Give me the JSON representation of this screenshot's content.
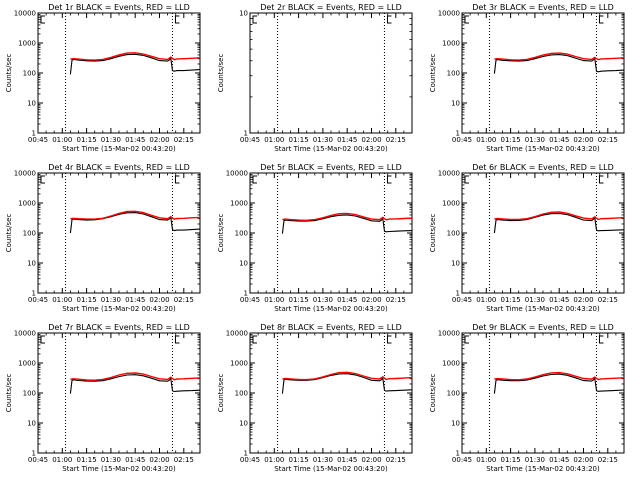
{
  "figure": {
    "background": "#ffffff",
    "axis_color": "#000000"
  },
  "shared_x_ticks": [
    "00:45",
    "01:00",
    "01:15",
    "01:30",
    "01:45",
    "02:00",
    "02:15"
  ],
  "shared_y_ticks": [
    "1",
    "10",
    "100",
    "1000",
    "10000"
  ],
  "chart_data": [
    {
      "type": "line",
      "title": "Det 1r BLACK = Events, RED = LLD",
      "xlabel": "Start Time (15-Mar-02 00:43:20)",
      "ylabel": "Counts/sec",
      "xlim_min": [
        0,
        100
      ],
      "ylim": [
        1,
        10000
      ],
      "yscale": "log",
      "x_ticks_min": [
        0,
        15,
        30,
        45,
        60,
        75,
        90
      ],
      "vlines_dotted_min": [
        17,
        83
      ],
      "series": [
        {
          "name": "Events",
          "color": "#000000",
          "x": [
            20,
            21,
            22,
            25,
            30,
            35,
            40,
            45,
            50,
            55,
            60,
            65,
            70,
            75,
            80,
            81,
            82,
            83,
            84,
            86,
            90,
            95,
            100
          ],
          "y": [
            90,
            270,
            285,
            270,
            255,
            250,
            260,
            300,
            360,
            410,
            420,
            385,
            320,
            260,
            250,
            270,
            310,
            120,
            115,
            120,
            120,
            125,
            130
          ]
        },
        {
          "name": "LLD",
          "color": "#ff0000",
          "x": [
            20,
            22,
            25,
            30,
            35,
            40,
            45,
            50,
            55,
            60,
            65,
            70,
            75,
            80,
            82,
            84,
            86,
            90,
            95,
            100
          ],
          "y": [
            290,
            300,
            290,
            275,
            270,
            285,
            330,
            400,
            460,
            470,
            430,
            360,
            300,
            285,
            340,
            280,
            295,
            300,
            310,
            320
          ]
        }
      ]
    },
    {
      "type": "line",
      "title": "Det 2r BLACK = Events, RED = LLD",
      "xlabel": "Start Time (15-Mar-02 00:43:20)",
      "ylabel": "Counts/sec",
      "xlim_min": [
        0,
        100
      ],
      "ylim": [
        1,
        10
      ],
      "yscale": "log",
      "y_ticks": [
        1,
        10
      ],
      "x_ticks_min": [
        0,
        15,
        30,
        45,
        60,
        75,
        90
      ],
      "vlines_dotted_min": [
        17,
        83
      ],
      "series": []
    },
    {
      "type": "line",
      "title": "Det 3r BLACK = Events, RED = LLD",
      "xlabel": "Start Time (15-Mar-02 00:43:20)",
      "ylabel": "Counts/sec",
      "xlim_min": [
        0,
        100
      ],
      "ylim": [
        1,
        10000
      ],
      "yscale": "log",
      "x_ticks_min": [
        0,
        15,
        30,
        45,
        60,
        75,
        90
      ],
      "vlines_dotted_min": [
        17,
        83
      ],
      "series": [
        {
          "name": "Events",
          "color": "#000000",
          "x": [
            20,
            21,
            22,
            25,
            30,
            35,
            40,
            45,
            50,
            55,
            60,
            65,
            70,
            75,
            80,
            81,
            82,
            83,
            84,
            86,
            90,
            95,
            100
          ],
          "y": [
            95,
            270,
            280,
            265,
            255,
            250,
            260,
            300,
            355,
            400,
            410,
            380,
            315,
            260,
            250,
            270,
            300,
            115,
            110,
            115,
            118,
            120,
            125
          ]
        },
        {
          "name": "LLD",
          "color": "#ff0000",
          "x": [
            20,
            22,
            25,
            30,
            35,
            40,
            45,
            50,
            55,
            60,
            65,
            70,
            75,
            80,
            82,
            84,
            86,
            90,
            95,
            100
          ],
          "y": [
            290,
            300,
            290,
            275,
            270,
            285,
            330,
            395,
            450,
            460,
            425,
            355,
            300,
            285,
            330,
            280,
            295,
            300,
            310,
            320
          ]
        }
      ]
    },
    {
      "type": "line",
      "title": "Det 4r BLACK = Events, RED = LLD",
      "xlabel": "Start Time (15-Mar-02 00:43:20)",
      "ylabel": "Counts/sec",
      "xlim_min": [
        0,
        100
      ],
      "ylim": [
        1,
        10000
      ],
      "yscale": "log",
      "x_ticks_min": [
        0,
        15,
        30,
        45,
        60,
        75,
        90
      ],
      "vlines_dotted_min": [
        17,
        83
      ],
      "series": [
        {
          "name": "Events",
          "color": "#000000",
          "x": [
            20,
            21,
            22,
            25,
            30,
            35,
            40,
            45,
            50,
            55,
            60,
            65,
            70,
            75,
            80,
            81,
            82,
            83,
            84,
            86,
            90,
            95,
            100
          ],
          "y": [
            100,
            280,
            290,
            280,
            270,
            275,
            300,
            350,
            420,
            470,
            480,
            430,
            350,
            280,
            270,
            290,
            330,
            130,
            120,
            125,
            125,
            130,
            135
          ]
        },
        {
          "name": "LLD",
          "color": "#ff0000",
          "x": [
            20,
            22,
            25,
            30,
            35,
            40,
            45,
            50,
            55,
            60,
            65,
            70,
            75,
            80,
            82,
            84,
            86,
            90,
            95,
            100
          ],
          "y": [
            300,
            310,
            300,
            290,
            290,
            310,
            370,
            450,
            520,
            530,
            480,
            390,
            320,
            300,
            350,
            290,
            305,
            310,
            320,
            330
          ]
        }
      ]
    },
    {
      "type": "line",
      "title": "Det 5r BLACK = Events, RED = LLD",
      "xlabel": "Start Time (15-Mar-02 00:43:20)",
      "ylabel": "Counts/sec",
      "xlim_min": [
        0,
        100
      ],
      "ylim": [
        1,
        10000
      ],
      "yscale": "log",
      "x_ticks_min": [
        0,
        15,
        30,
        45,
        60,
        75,
        90
      ],
      "vlines_dotted_min": [
        17,
        83
      ],
      "series": [
        {
          "name": "Events",
          "color": "#000000",
          "x": [
            20,
            21,
            22,
            25,
            30,
            35,
            40,
            45,
            50,
            55,
            60,
            65,
            70,
            75,
            80,
            81,
            82,
            83,
            84,
            86,
            90,
            95,
            100
          ],
          "y": [
            95,
            260,
            270,
            260,
            250,
            250,
            260,
            300,
            350,
            390,
            400,
            370,
            310,
            255,
            245,
            265,
            300,
            115,
            110,
            112,
            115,
            118,
            120
          ]
        },
        {
          "name": "LLD",
          "color": "#ff0000",
          "x": [
            20,
            22,
            25,
            30,
            35,
            40,
            45,
            50,
            55,
            60,
            65,
            70,
            75,
            80,
            82,
            84,
            86,
            90,
            95,
            100
          ],
          "y": [
            280,
            290,
            280,
            270,
            265,
            280,
            320,
            385,
            440,
            450,
            415,
            345,
            290,
            280,
            330,
            275,
            290,
            295,
            305,
            315
          ]
        }
      ]
    },
    {
      "type": "line",
      "title": "Det 6r BLACK = Events, RED = LLD",
      "xlabel": "Start Time (15-Mar-02 00:43:20)",
      "ylabel": "Counts/sec",
      "xlim_min": [
        0,
        100
      ],
      "ylim": [
        1,
        10000
      ],
      "yscale": "log",
      "x_ticks_min": [
        0,
        15,
        30,
        45,
        60,
        75,
        90
      ],
      "vlines_dotted_min": [
        17,
        83
      ],
      "series": [
        {
          "name": "Events",
          "color": "#000000",
          "x": [
            20,
            21,
            22,
            25,
            30,
            35,
            40,
            45,
            50,
            55,
            60,
            65,
            70,
            75,
            80,
            81,
            82,
            83,
            84,
            86,
            90,
            95,
            100
          ],
          "y": [
            100,
            270,
            280,
            270,
            260,
            262,
            280,
            330,
            395,
            440,
            450,
            410,
            335,
            270,
            260,
            280,
            320,
            125,
            118,
            120,
            122,
            125,
            128
          ]
        },
        {
          "name": "LLD",
          "color": "#ff0000",
          "x": [
            20,
            22,
            25,
            30,
            35,
            40,
            45,
            50,
            55,
            60,
            65,
            70,
            75,
            80,
            82,
            84,
            86,
            90,
            95,
            100
          ],
          "y": [
            295,
            305,
            295,
            285,
            285,
            300,
            350,
            425,
            490,
            500,
            455,
            375,
            315,
            295,
            345,
            285,
            300,
            305,
            315,
            325
          ]
        }
      ]
    },
    {
      "type": "line",
      "title": "Det 7r BLACK = Events, RED = LLD",
      "xlabel": "Start Time (15-Mar-02 00:43:20)",
      "ylabel": "Counts/sec",
      "xlim_min": [
        0,
        100
      ],
      "ylim": [
        1,
        10000
      ],
      "yscale": "log",
      "x_ticks_min": [
        0,
        15,
        30,
        45,
        60,
        75,
        90
      ],
      "vlines_dotted_min": [
        17,
        83
      ],
      "series": [
        {
          "name": "Events",
          "color": "#000000",
          "x": [
            20,
            21,
            22,
            25,
            30,
            35,
            40,
            45,
            50,
            55,
            60,
            65,
            70,
            75,
            80,
            81,
            82,
            83,
            84,
            86,
            90,
            95,
            100
          ],
          "y": [
            95,
            265,
            275,
            262,
            250,
            248,
            258,
            298,
            352,
            398,
            408,
            375,
            312,
            255,
            248,
            268,
            302,
            118,
            112,
            115,
            118,
            120,
            124
          ]
        },
        {
          "name": "LLD",
          "color": "#ff0000",
          "x": [
            20,
            22,
            25,
            30,
            35,
            40,
            45,
            50,
            55,
            60,
            65,
            70,
            75,
            80,
            82,
            84,
            86,
            90,
            95,
            100
          ],
          "y": [
            288,
            298,
            288,
            272,
            268,
            284,
            328,
            398,
            455,
            465,
            428,
            356,
            298,
            284,
            335,
            278,
            292,
            298,
            308,
            318
          ]
        }
      ]
    },
    {
      "type": "line",
      "title": "Det 8r BLACK = Events, RED = LLD",
      "xlabel": "Start Time (15-Mar-02 00:43:20)",
      "ylabel": "Counts/sec",
      "xlim_min": [
        0,
        100
      ],
      "ylim": [
        1,
        10000
      ],
      "yscale": "log",
      "x_ticks_min": [
        0,
        15,
        30,
        45,
        60,
        75,
        90
      ],
      "vlines_dotted_min": [
        17,
        83
      ],
      "series": [
        {
          "name": "Events",
          "color": "#000000",
          "x": [
            20,
            21,
            22,
            25,
            30,
            35,
            40,
            45,
            50,
            55,
            60,
            65,
            70,
            75,
            80,
            81,
            82,
            83,
            84,
            86,
            90,
            95,
            100
          ],
          "y": [
            95,
            275,
            285,
            275,
            265,
            265,
            280,
            325,
            385,
            430,
            440,
            400,
            330,
            265,
            255,
            275,
            315,
            122,
            116,
            118,
            120,
            124,
            128
          ]
        },
        {
          "name": "LLD",
          "color": "#ff0000",
          "x": [
            20,
            22,
            25,
            30,
            35,
            40,
            45,
            50,
            55,
            60,
            65,
            70,
            75,
            80,
            82,
            84,
            86,
            90,
            95,
            100
          ],
          "y": [
            295,
            305,
            295,
            282,
            280,
            296,
            345,
            415,
            478,
            488,
            445,
            368,
            308,
            292,
            345,
            285,
            300,
            305,
            315,
            325
          ]
        }
      ]
    },
    {
      "type": "line",
      "title": "Det 9r BLACK = Events, RED = LLD",
      "xlabel": "Start Time (15-Mar-02 00:43:20)",
      "ylabel": "Counts/sec",
      "xlim_min": [
        0,
        100
      ],
      "ylim": [
        1,
        10000
      ],
      "yscale": "log",
      "x_ticks_min": [
        0,
        15,
        30,
        45,
        60,
        75,
        90
      ],
      "vlines_dotted_min": [
        17,
        83
      ],
      "series": [
        {
          "name": "Events",
          "color": "#000000",
          "x": [
            20,
            21,
            22,
            25,
            30,
            35,
            40,
            45,
            50,
            55,
            60,
            65,
            70,
            75,
            80,
            81,
            82,
            83,
            84,
            86,
            90,
            95,
            100
          ],
          "y": [
            95,
            268,
            278,
            268,
            258,
            258,
            270,
            312,
            370,
            415,
            425,
            388,
            320,
            260,
            250,
            270,
            308,
            120,
            114,
            116,
            118,
            122,
            126
          ]
        },
        {
          "name": "LLD",
          "color": "#ff0000",
          "x": [
            20,
            22,
            25,
            30,
            35,
            40,
            45,
            50,
            55,
            60,
            65,
            70,
            75,
            80,
            82,
            84,
            86,
            90,
            95,
            100
          ],
          "y": [
            292,
            302,
            292,
            280,
            276,
            292,
            340,
            408,
            468,
            478,
            438,
            362,
            304,
            290,
            340,
            282,
            296,
            302,
            312,
            322
          ]
        }
      ]
    }
  ]
}
